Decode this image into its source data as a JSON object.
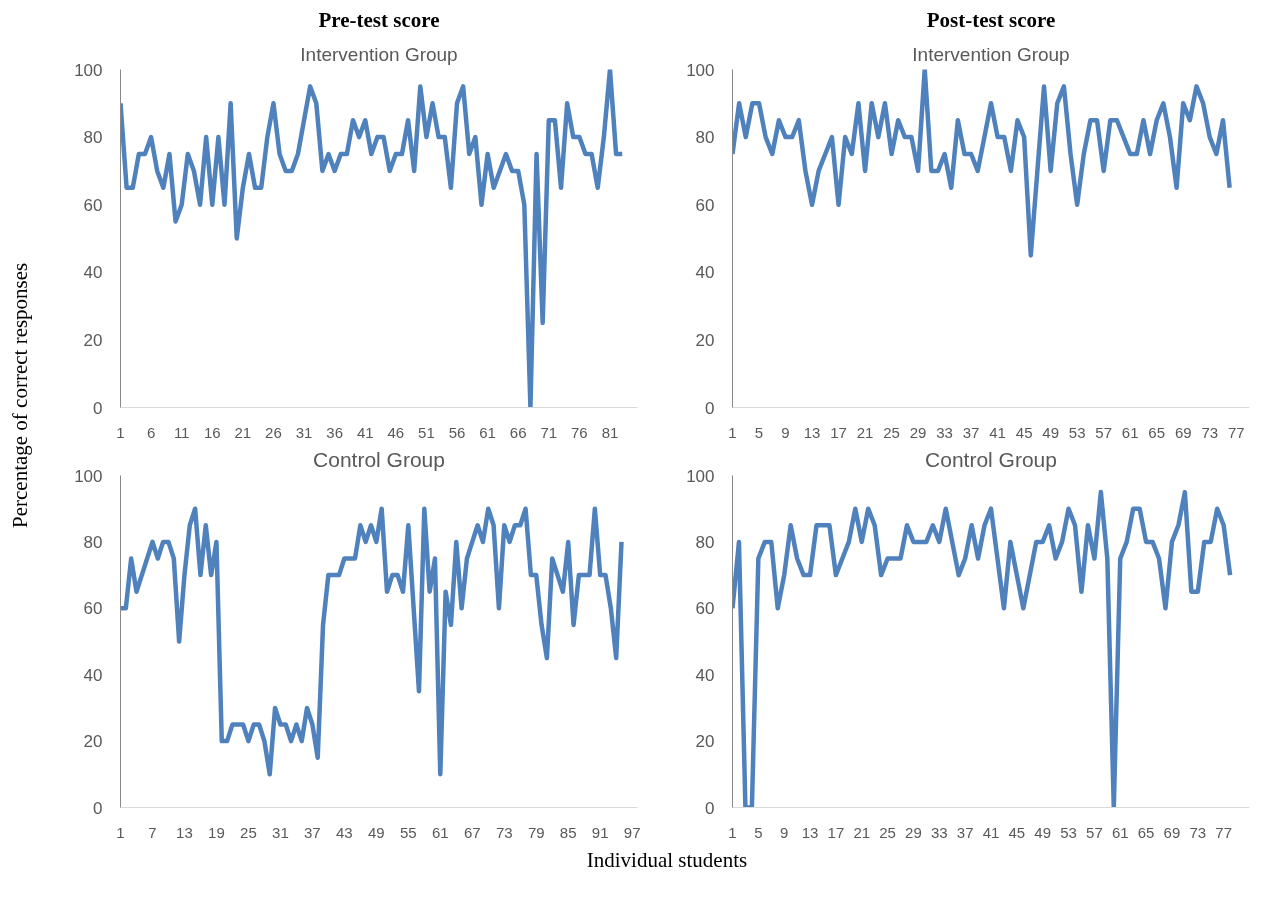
{
  "chart_data": [
    {
      "type": "line",
      "title": "Pre-test score",
      "subtitle": "Intervention Group",
      "ylabel": "Percentage of correct responses",
      "x": [
        1,
        2,
        3,
        4,
        5,
        6,
        7,
        8,
        9,
        10,
        11,
        12,
        13,
        14,
        15,
        16,
        17,
        18,
        19,
        20,
        21,
        22,
        23,
        24,
        25,
        26,
        27,
        28,
        29,
        30,
        31,
        32,
        33,
        34,
        35,
        36,
        37,
        38,
        39,
        40,
        41,
        42,
        43,
        44,
        45,
        46,
        47,
        48,
        49,
        50,
        51,
        52,
        53,
        54,
        55,
        56,
        57,
        58,
        59,
        60,
        61,
        62,
        63,
        64,
        65,
        66,
        67,
        68,
        69,
        70,
        71,
        72,
        73,
        74,
        75,
        76,
        77,
        78,
        79,
        80,
        81,
        82,
        83
      ],
      "series": [
        {
          "color": "#4f81bd",
          "values": [
            90,
            65,
            65,
            75,
            75,
            80,
            70,
            65,
            75,
            55,
            60,
            75,
            70,
            60,
            80,
            60,
            80,
            60,
            90,
            50,
            65,
            75,
            65,
            65,
            80,
            90,
            75,
            70,
            70,
            75,
            85,
            95,
            90,
            70,
            75,
            70,
            75,
            75,
            85,
            80,
            85,
            75,
            80,
            80,
            70,
            75,
            75,
            85,
            70,
            95,
            80,
            90,
            80,
            80,
            65,
            90,
            95,
            75,
            80,
            60,
            75,
            65,
            70,
            75,
            70,
            70,
            60,
            0,
            75,
            25,
            85,
            85,
            65,
            90,
            80,
            80,
            75,
            75,
            65,
            80,
            100,
            75,
            75
          ]
        }
      ],
      "xlim": [
        1,
        85.5
      ],
      "ylim": [
        0,
        100
      ],
      "xticks": [
        1,
        6,
        11,
        16,
        21,
        26,
        31,
        36,
        41,
        46,
        51,
        56,
        61,
        66,
        71,
        76,
        81
      ],
      "yticks": [
        0,
        20,
        40,
        60,
        80,
        100
      ]
    },
    {
      "type": "line",
      "title": "Post-test score",
      "subtitle": "Intervention Group",
      "x": [
        1,
        2,
        3,
        4,
        5,
        6,
        7,
        8,
        9,
        10,
        11,
        12,
        13,
        14,
        15,
        16,
        17,
        18,
        19,
        20,
        21,
        22,
        23,
        24,
        25,
        26,
        27,
        28,
        29,
        30,
        31,
        32,
        33,
        34,
        35,
        36,
        37,
        38,
        39,
        40,
        41,
        42,
        43,
        44,
        45,
        46,
        47,
        48,
        49,
        50,
        51,
        52,
        53,
        54,
        55,
        56,
        57,
        58,
        59,
        60,
        61,
        62,
        63,
        64,
        65,
        66,
        67,
        68,
        69,
        70,
        71,
        72,
        73,
        74,
        75,
        76
      ],
      "series": [
        {
          "color": "#4f81bd",
          "values": [
            75,
            90,
            80,
            90,
            90,
            80,
            75,
            85,
            80,
            80,
            85,
            70,
            60,
            70,
            75,
            80,
            60,
            80,
            75,
            90,
            70,
            90,
            80,
            90,
            75,
            85,
            80,
            80,
            70,
            100,
            70,
            70,
            75,
            65,
            85,
            75,
            75,
            70,
            80,
            90,
            80,
            80,
            70,
            85,
            80,
            45,
            70,
            95,
            70,
            90,
            95,
            75,
            60,
            75,
            85,
            85,
            70,
            85,
            85,
            80,
            75,
            75,
            85,
            75,
            85,
            90,
            80,
            65,
            90,
            85,
            95,
            90,
            80,
            75,
            85,
            65
          ]
        }
      ],
      "xlim": [
        1,
        79
      ],
      "ylim": [
        0,
        100
      ],
      "xticks": [
        1,
        5,
        9,
        13,
        17,
        21,
        25,
        29,
        33,
        37,
        41,
        45,
        49,
        53,
        57,
        61,
        65,
        69,
        73,
        77
      ],
      "yticks": [
        0,
        20,
        40,
        60,
        80,
        100
      ]
    },
    {
      "type": "line",
      "title": "Control Group",
      "xlabel": "Individual students",
      "x": [
        1,
        2,
        3,
        4,
        5,
        6,
        7,
        8,
        9,
        10,
        11,
        12,
        13,
        14,
        15,
        16,
        17,
        18,
        19,
        20,
        21,
        22,
        23,
        24,
        25,
        26,
        27,
        28,
        29,
        30,
        31,
        32,
        33,
        34,
        35,
        36,
        37,
        38,
        39,
        40,
        41,
        42,
        43,
        44,
        45,
        46,
        47,
        48,
        49,
        50,
        51,
        52,
        53,
        54,
        55,
        56,
        57,
        58,
        59,
        60,
        61,
        62,
        63,
        64,
        65,
        66,
        67,
        68,
        69,
        70,
        71,
        72,
        73,
        74,
        75,
        76,
        77,
        78,
        79,
        80,
        81,
        82,
        83,
        84,
        85,
        86,
        87,
        88,
        89,
        90,
        91,
        92,
        93,
        94,
        95
      ],
      "series": [
        {
          "color": "#4f81bd",
          "values": [
            60,
            60,
            75,
            65,
            70,
            75,
            80,
            75,
            80,
            80,
            75,
            50,
            70,
            85,
            90,
            70,
            85,
            70,
            80,
            20,
            20,
            25,
            25,
            25,
            20,
            25,
            25,
            20,
            10,
            30,
            25,
            25,
            20,
            25,
            20,
            30,
            25,
            15,
            55,
            70,
            70,
            70,
            75,
            75,
            75,
            85,
            80,
            85,
            80,
            90,
            65,
            70,
            70,
            65,
            85,
            60,
            35,
            90,
            65,
            75,
            10,
            65,
            55,
            80,
            60,
            75,
            80,
            85,
            80,
            90,
            85,
            60,
            85,
            80,
            85,
            85,
            90,
            70,
            70,
            55,
            45,
            75,
            70,
            65,
            80,
            55,
            70,
            70,
            70,
            90,
            70,
            70,
            60,
            45,
            80
          ]
        }
      ],
      "xlim": [
        1,
        98
      ],
      "ylim": [
        0,
        100
      ],
      "xticks": [
        1,
        7,
        13,
        19,
        25,
        31,
        37,
        43,
        49,
        55,
        61,
        67,
        73,
        79,
        85,
        91,
        97
      ],
      "yticks": [
        0,
        20,
        40,
        60,
        80,
        100
      ]
    },
    {
      "type": "line",
      "title": "Control Group",
      "x": [
        1,
        2,
        3,
        4,
        5,
        6,
        7,
        8,
        9,
        10,
        11,
        12,
        13,
        14,
        15,
        16,
        17,
        18,
        19,
        20,
        21,
        22,
        23,
        24,
        25,
        26,
        27,
        28,
        29,
        30,
        31,
        32,
        33,
        34,
        35,
        36,
        37,
        38,
        39,
        40,
        41,
        42,
        43,
        44,
        45,
        46,
        47,
        48,
        49,
        50,
        51,
        52,
        53,
        54,
        55,
        56,
        57,
        58,
        59,
        60,
        61,
        62,
        63,
        64,
        65,
        66,
        67,
        68,
        69,
        70,
        71,
        72,
        73,
        74,
        75,
        76,
        77,
        78
      ],
      "series": [
        {
          "color": "#4f81bd",
          "values": [
            60,
            80,
            0,
            0,
            75,
            80,
            80,
            60,
            70,
            85,
            75,
            70,
            70,
            85,
            85,
            85,
            70,
            75,
            80,
            90,
            80,
            90,
            85,
            70,
            75,
            75,
            75,
            85,
            80,
            80,
            80,
            85,
            80,
            90,
            80,
            70,
            75,
            85,
            75,
            85,
            90,
            75,
            60,
            80,
            70,
            60,
            70,
            80,
            80,
            85,
            75,
            80,
            90,
            85,
            65,
            85,
            75,
            95,
            75,
            0,
            75,
            80,
            90,
            90,
            80,
            80,
            75,
            60,
            80,
            85,
            95,
            65,
            65,
            80,
            80,
            90,
            85,
            70
          ]
        }
      ],
      "xlim": [
        1,
        81
      ],
      "ylim": [
        0,
        100
      ],
      "xticks": [
        1,
        5,
        9,
        13,
        17,
        21,
        25,
        29,
        33,
        37,
        41,
        45,
        49,
        53,
        57,
        61,
        65,
        69,
        73,
        77
      ],
      "yticks": [
        0,
        20,
        40,
        60,
        80,
        100
      ]
    }
  ]
}
